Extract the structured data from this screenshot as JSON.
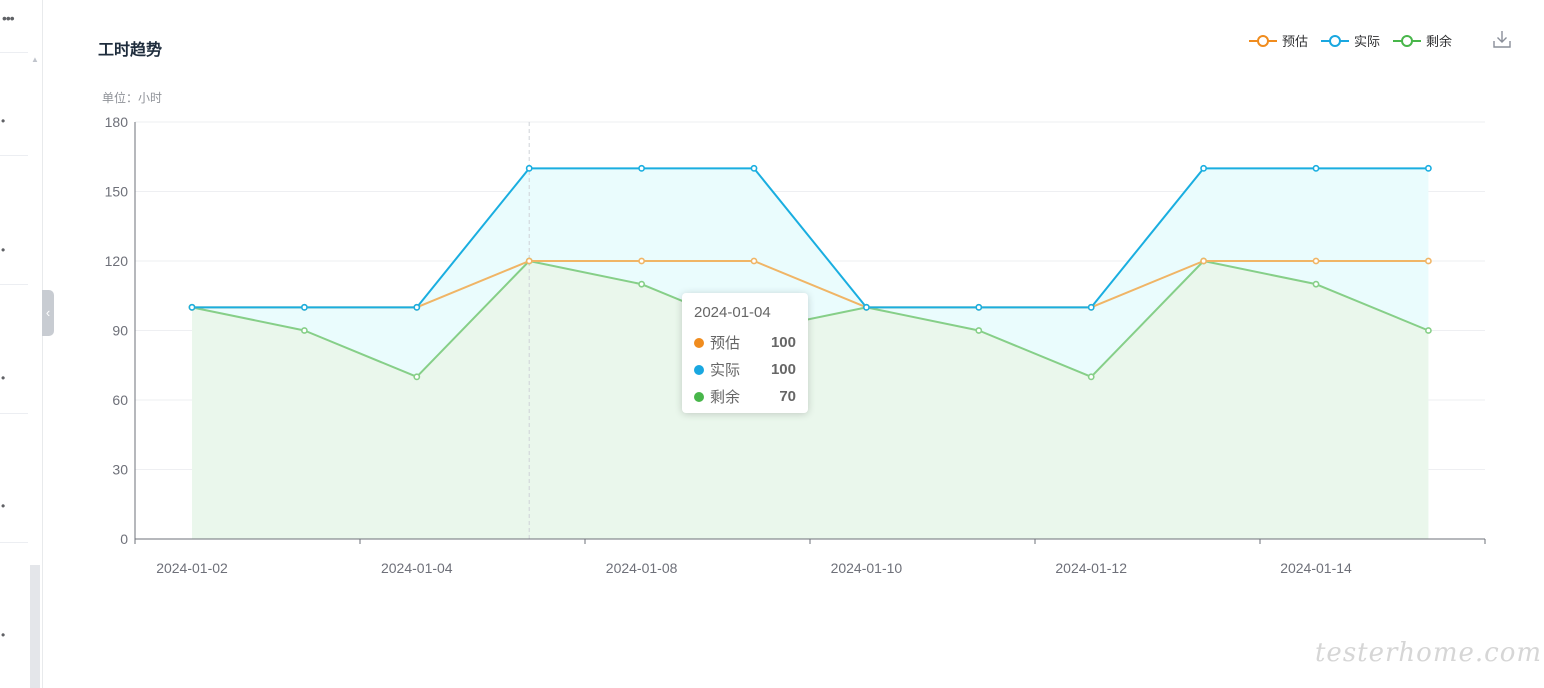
{
  "title": "工时趋势",
  "unit_label": "单位：小时",
  "tooltip": {
    "date": "2024-01-04",
    "rows": [
      {
        "name": "预估",
        "value": "100",
        "color": "#f08c1e"
      },
      {
        "name": "实际",
        "value": "100",
        "color": "#19a7e0"
      },
      {
        "name": "剩余",
        "value": "70",
        "color": "#48b64a"
      }
    ]
  },
  "watermark": "testerhome.com",
  "icons": {
    "download": "download-icon",
    "collapse": "chevron-left-icon"
  },
  "chart_data": {
    "type": "line",
    "title": "工时趋势",
    "ylabel": "单位：小时",
    "ylim": [
      0,
      180
    ],
    "yticks": [
      0,
      30,
      60,
      90,
      120,
      150,
      180
    ],
    "x_tick_labels": [
      "2024-01-02",
      "2024-01-04",
      "2024-01-08",
      "2024-01-10",
      "2024-01-12",
      "2024-01-14"
    ],
    "point_count": 12,
    "legend_position": "top-right",
    "grid": true,
    "series": [
      {
        "name": "预估",
        "color": "#f0b566",
        "legend_color": "#f08c1e",
        "area": false,
        "values": [
          100,
          100,
          100,
          120,
          120,
          120,
          100,
          100,
          100,
          120,
          120,
          120
        ]
      },
      {
        "name": "实际",
        "color": "#1aaee0",
        "legend_color": "#19a7e0",
        "area": true,
        "fill": "#eafcfd",
        "values": [
          100,
          100,
          100,
          160,
          160,
          160,
          100,
          100,
          100,
          160,
          160,
          160
        ]
      },
      {
        "name": "剩余",
        "color": "#86cf88",
        "legend_color": "#48b64a",
        "area": true,
        "fill": "#eaf7ec",
        "values": [
          100,
          90,
          70,
          120,
          110,
          90,
          100,
          90,
          70,
          120,
          110,
          90
        ]
      }
    ]
  }
}
